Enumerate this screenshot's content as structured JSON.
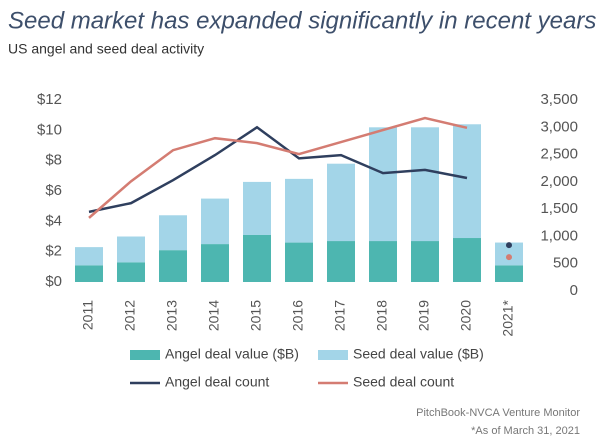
{
  "chart_data": {
    "type": "bar_line",
    "title": "Seed market has expanded significantly in recent years",
    "subtitle": "US angel and seed deal activity",
    "categories": [
      "2011",
      "2012",
      "2013",
      "2014",
      "2015",
      "2016",
      "2017",
      "2018",
      "2019",
      "2020",
      "2021*"
    ],
    "series": [
      {
        "name": "Angel deal value ($B)",
        "color": "#4db6b0",
        "kind": "bar",
        "values": [
          1.1,
          1.3,
          2.1,
          2.5,
          3.1,
          2.6,
          2.7,
          2.7,
          2.7,
          2.9,
          1.1
        ]
      },
      {
        "name": "Seed deal value ($B)",
        "color": "#a3d5e8",
        "kind": "bar",
        "values": [
          1.2,
          1.7,
          2.3,
          3.0,
          3.5,
          4.2,
          5.1,
          7.5,
          7.5,
          7.5,
          1.5
        ]
      },
      {
        "name": "Angel deal count",
        "color": "#2f3f5e",
        "kind": "line",
        "axis": "y2",
        "values": [
          1450,
          1610,
          2030,
          2490,
          3000,
          2430,
          2490,
          2160,
          2220,
          2070,
          840
        ]
      },
      {
        "name": "Seed deal count",
        "color": "#d47c72",
        "kind": "line",
        "axis": "y2",
        "values": [
          1340,
          2010,
          2580,
          2800,
          2710,
          2510,
          2730,
          2950,
          3170,
          2990,
          620
        ]
      }
    ],
    "marker_only_categories": [
      "2021*"
    ],
    "ylim": [
      0,
      12
    ],
    "yticks": [
      {
        "value": 0,
        "label": "$0"
      },
      {
        "value": 2,
        "label": "$2"
      },
      {
        "value": 4,
        "label": "$4"
      },
      {
        "value": 6,
        "label": "$6"
      },
      {
        "value": 8,
        "label": "$8"
      },
      {
        "value": 10,
        "label": "$10"
      },
      {
        "value": 12,
        "label": "$12"
      }
    ],
    "y2lim": [
      0,
      3500
    ],
    "y2ticks": [
      0,
      500,
      {
        "value": 1000,
        "label": "1,000"
      },
      {
        "value": 1500,
        "label": "1,500"
      },
      {
        "value": 2000,
        "label": "2,000"
      },
      {
        "value": 2500,
        "label": "2,500"
      },
      {
        "value": 3000,
        "label": "3,000"
      },
      {
        "value": 3500,
        "label": "3,500"
      }
    ],
    "source": "PitchBook-NVCA Venture Monitor",
    "note": "*As of March 31, 2021"
  }
}
